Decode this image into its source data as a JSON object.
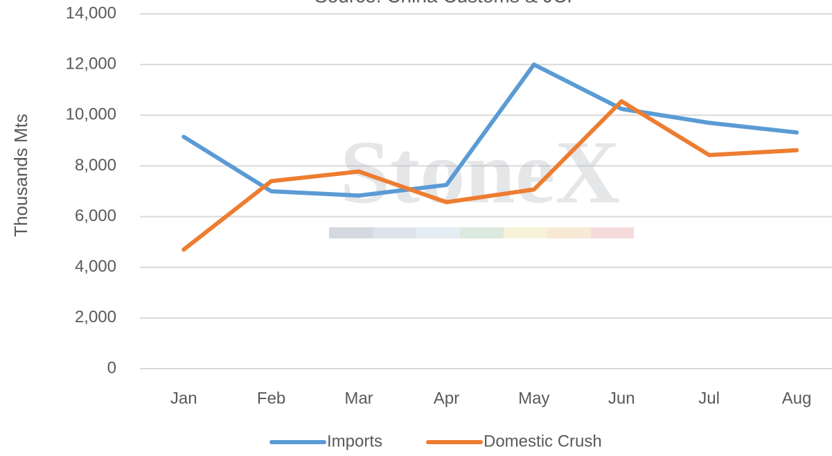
{
  "chart_data": {
    "type": "line",
    "subtitle": "Source: China Customs & JCI",
    "watermark": "StoneX",
    "ylabel": "Thousands Mts",
    "categories": [
      "Jan",
      "Feb",
      "Mar",
      "Apr",
      "May",
      "Jun",
      "Jul",
      "Aug"
    ],
    "series": [
      {
        "name": "Imports",
        "color": "#5b9bd5",
        "values": [
          9150,
          7000,
          6830,
          7250,
          12000,
          10250,
          9700,
          9320
        ]
      },
      {
        "name": "Domestic Crush",
        "color": "#ed7d31",
        "values": [
          4700,
          7400,
          7780,
          6570,
          7070,
          10550,
          8430,
          8620
        ]
      }
    ],
    "ylim": [
      0,
      14000
    ],
    "yticks": [
      0,
      {
        "value": 2000,
        "label": "2,000"
      },
      {
        "value": 4000,
        "label": "4,000"
      },
      {
        "value": 6000,
        "label": "6,000"
      },
      {
        "value": 8000,
        "label": "8,000"
      },
      {
        "value": 10000,
        "label": "10,000"
      },
      {
        "value": 12000,
        "label": "12,000"
      },
      {
        "value": 14000,
        "label": "14,000"
      }
    ],
    "grid": true,
    "legend": "bottom"
  }
}
